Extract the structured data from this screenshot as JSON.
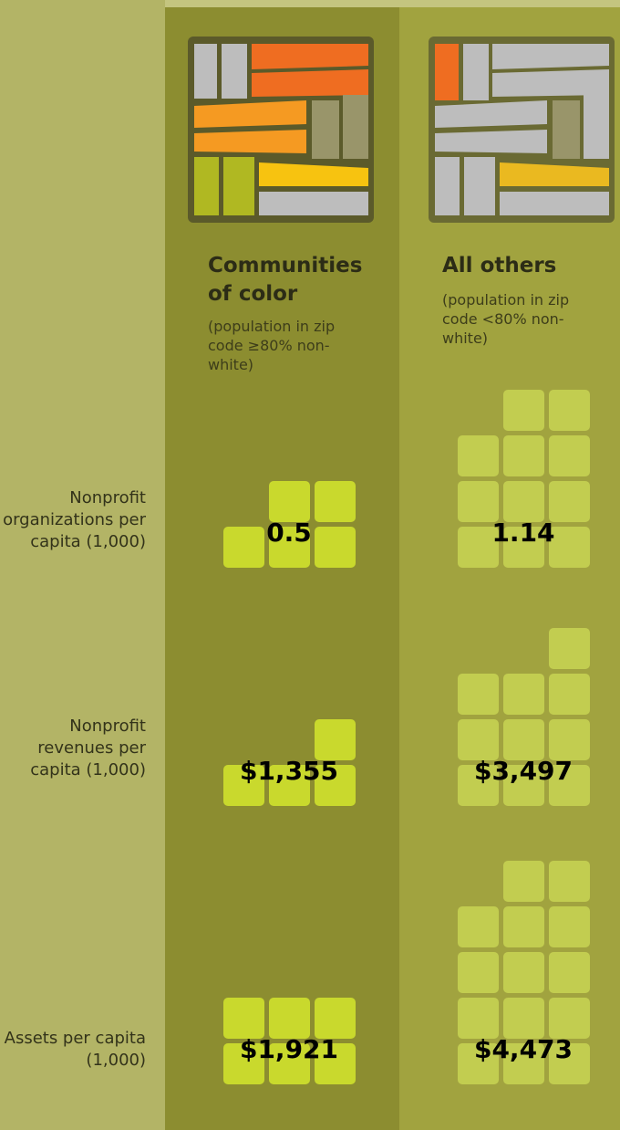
{
  "chart_data": {
    "type": "pictograph",
    "categories": [
      "Nonprofit organizations per capita (1,000)",
      "Nonprofit revenues per capita (1,000)",
      "Assets per capita (1,000)"
    ],
    "series": [
      {
        "name": "Communities of color",
        "note": "(population in zip code ≥80% non-white)",
        "color": "#c9d92d",
        "values": [
          0.5,
          1355,
          1921
        ],
        "value_labels": [
          "0.5",
          "$1,355",
          "$1,921"
        ],
        "blocks": [
          5,
          4,
          6
        ]
      },
      {
        "name": "All others",
        "note": "(population in zip code <80% non-white)",
        "color": "#c2cd50",
        "values": [
          1.14,
          3497,
          4473
        ],
        "value_labels": [
          "1.14",
          "$3,497",
          "$4,473"
        ],
        "blocks": [
          11,
          10,
          14
        ]
      }
    ]
  }
}
